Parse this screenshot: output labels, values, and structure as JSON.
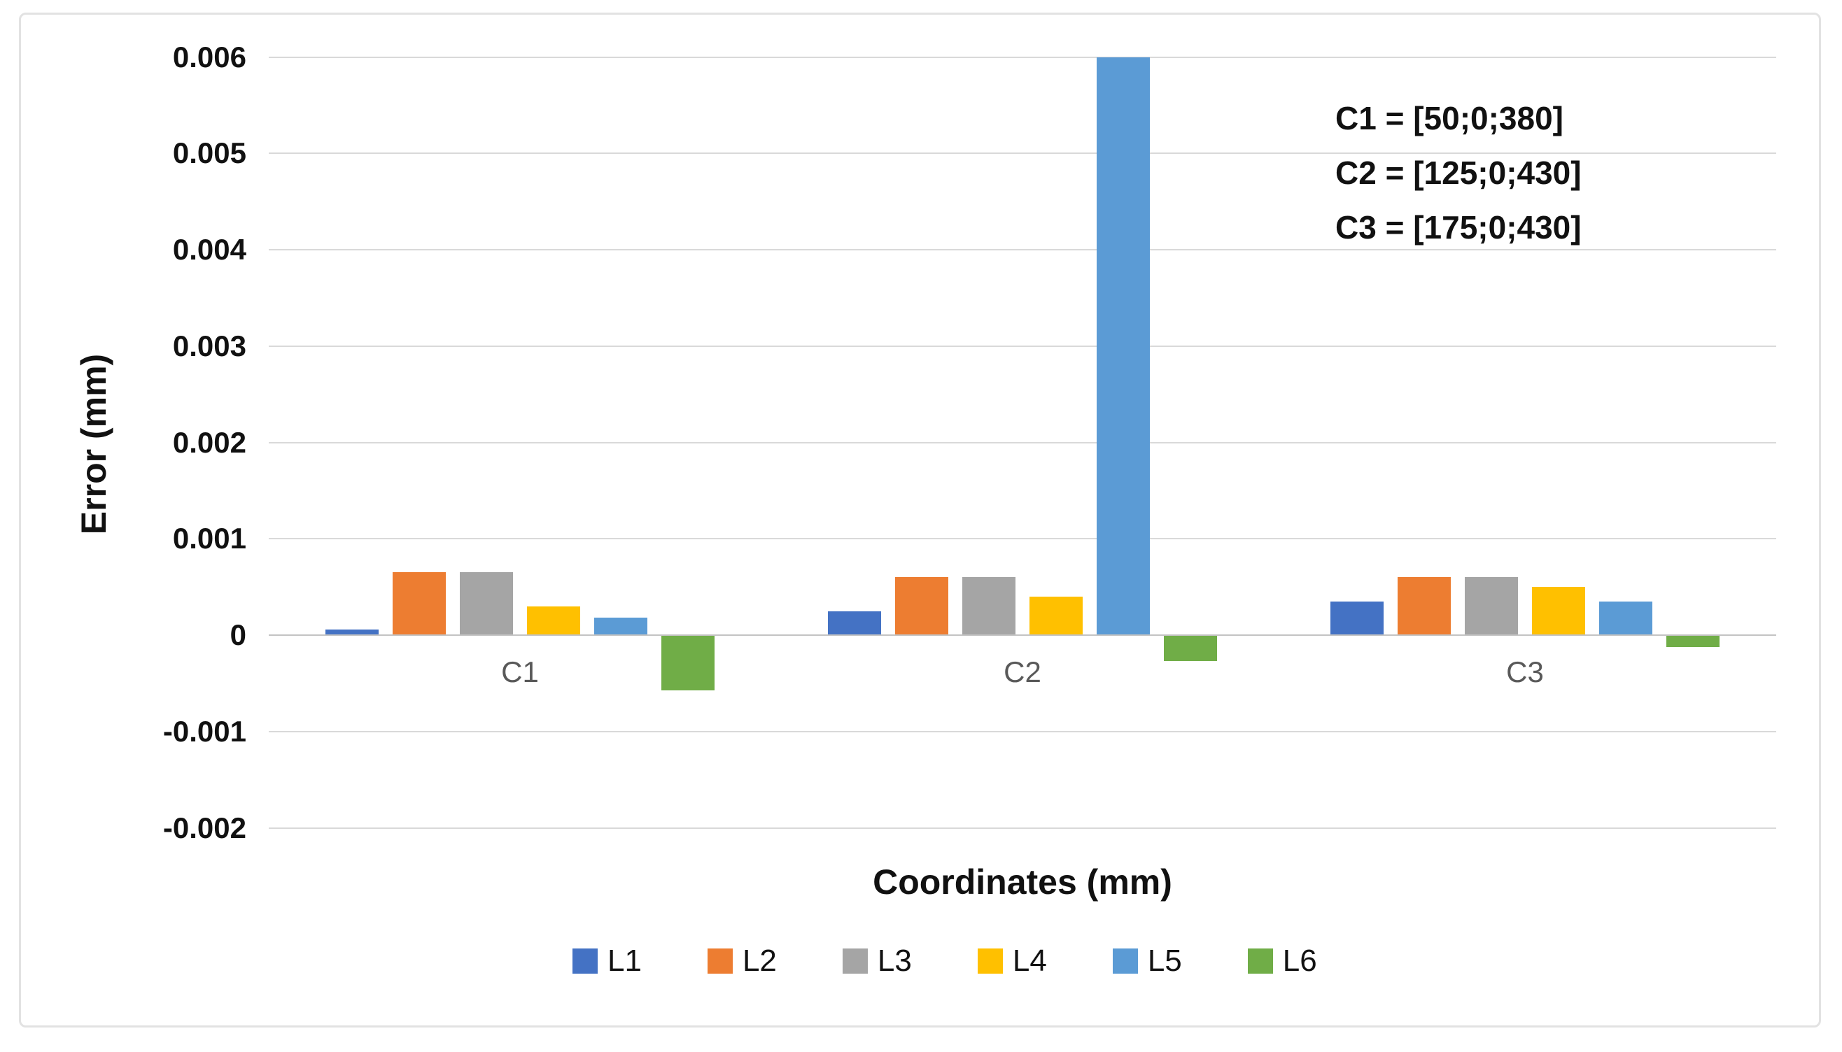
{
  "chart_data": {
    "type": "bar",
    "categories": [
      "C1",
      "C2",
      "C3"
    ],
    "series": [
      {
        "name": "L1",
        "color": "#4472C4",
        "values": [
          6e-05,
          0.00025,
          0.00035
        ]
      },
      {
        "name": "L2",
        "color": "#ED7D31",
        "values": [
          0.00065,
          0.0006,
          0.0006
        ]
      },
      {
        "name": "L3",
        "color": "#A5A5A5",
        "values": [
          0.00065,
          0.0006,
          0.0006
        ]
      },
      {
        "name": "L4",
        "color": "#FFC000",
        "values": [
          0.0003,
          0.0004,
          0.0005
        ]
      },
      {
        "name": "L5",
        "color": "#5B9BD5",
        "values": [
          0.00018,
          0.006,
          0.00035
        ]
      },
      {
        "name": "L6",
        "color": "#70AD47",
        "values": [
          -0.00057,
          -0.00027,
          -0.00012
        ]
      }
    ],
    "xlabel": "Coordinates (mm)",
    "ylabel": "Error (mm)",
    "ylim": [
      -0.002,
      0.006
    ],
    "ytick_labels": [
      "0.006",
      "0.005",
      "0.004",
      "0.003",
      "0.002",
      "0.001",
      "0",
      "-0.001",
      "-0.002"
    ],
    "grid": true,
    "legend_position": "bottom",
    "annotation_lines": [
      "C1 = [50;0;380]",
      "C2 = [125;0;430]",
      "C3 = [175;0;430]"
    ]
  },
  "style_colors": {
    "gridline": "#d9d9d9",
    "zero_axis_line": "#c3c3c3",
    "category_label": "#595959",
    "text": "#111111",
    "frame_border": "#e2e2e2",
    "background": "#ffffff"
  }
}
